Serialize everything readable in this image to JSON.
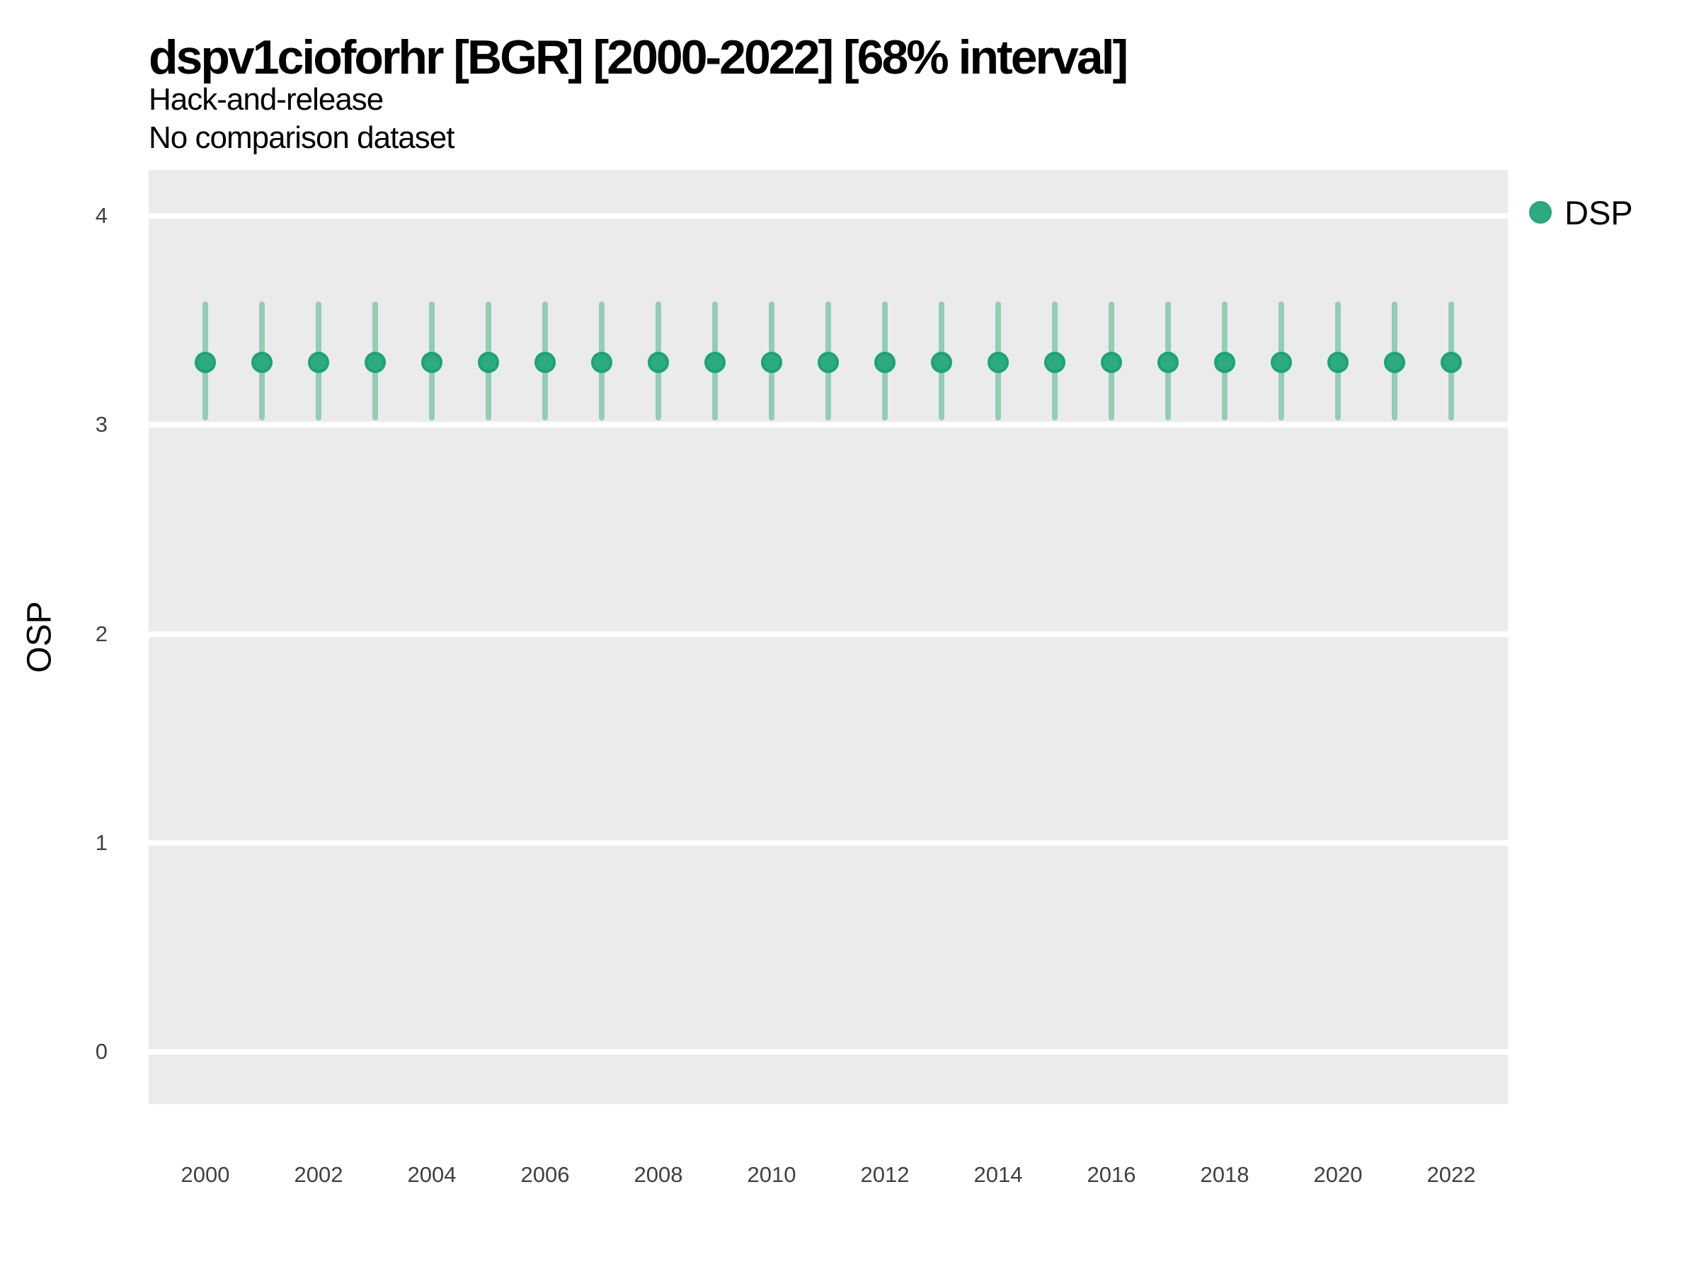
{
  "header": {
    "title": "dspv1cioforhr [BGR] [2000-2022] [68% interval]",
    "subtitle": "Hack-and-release",
    "note": "No comparison dataset"
  },
  "axes": {
    "y_label": "OSP",
    "x_label": "",
    "y_tick_labels": [
      "4",
      "3",
      "2",
      "1",
      "0"
    ],
    "x_tick_labels": [
      "2000",
      "2002",
      "2004",
      "2006",
      "2008",
      "2010",
      "2012",
      "2014",
      "2016",
      "2018",
      "2020",
      "2022"
    ]
  },
  "legend": {
    "position": "right",
    "items": [
      {
        "label": "DSP",
        "marker": "circle",
        "color": "#2DAA7E"
      }
    ]
  },
  "colors": {
    "panel_background": "#EBEBEB",
    "gridline": "#FFFFFF",
    "point_fill": "#2DAA7E",
    "point_stroke": "#1CA377",
    "interval_bar": "#92CEB4",
    "axis_text": "#404040",
    "title_text": "#000000"
  },
  "chart_data": {
    "type": "scatter",
    "subtype": "pointrange",
    "title": "dspv1cioforhr [BGR] [2000-2022] [68% interval]",
    "subtitle": "Hack-and-release",
    "annotation": "No comparison dataset",
    "xlabel": "",
    "ylabel": "OSP",
    "interval": "68%",
    "xlim": [
      1999,
      2023
    ],
    "ylim": [
      -0.25,
      4.22
    ],
    "x_ticks": [
      2000,
      2002,
      2004,
      2006,
      2008,
      2010,
      2012,
      2014,
      2016,
      2018,
      2020,
      2022
    ],
    "y_ticks": [
      4,
      3,
      2,
      1,
      0
    ],
    "grid": {
      "horizontal_major": true,
      "vertical": false,
      "minor": false
    },
    "legend_position": "right",
    "series": [
      {
        "name": "DSP",
        "x": [
          2000,
          2001,
          2002,
          2003,
          2004,
          2005,
          2006,
          2007,
          2008,
          2009,
          2010,
          2011,
          2012,
          2013,
          2014,
          2015,
          2016,
          2017,
          2018,
          2019,
          2020,
          2021,
          2022
        ],
        "y": [
          3.3,
          3.3,
          3.3,
          3.3,
          3.3,
          3.3,
          3.3,
          3.3,
          3.3,
          3.3,
          3.3,
          3.3,
          3.3,
          3.3,
          3.3,
          3.3,
          3.3,
          3.3,
          3.3,
          3.3,
          3.3,
          3.3,
          3.3
        ],
        "y_lo": [
          3.02,
          3.02,
          3.02,
          3.02,
          3.02,
          3.02,
          3.02,
          3.02,
          3.02,
          3.02,
          3.02,
          3.02,
          3.02,
          3.02,
          3.02,
          3.02,
          3.02,
          3.02,
          3.02,
          3.02,
          3.02,
          3.02,
          3.02
        ],
        "y_hi": [
          3.59,
          3.59,
          3.59,
          3.59,
          3.59,
          3.59,
          3.59,
          3.59,
          3.59,
          3.59,
          3.59,
          3.59,
          3.59,
          3.59,
          3.59,
          3.59,
          3.59,
          3.59,
          3.59,
          3.59,
          3.59,
          3.59,
          3.59
        ]
      }
    ]
  }
}
